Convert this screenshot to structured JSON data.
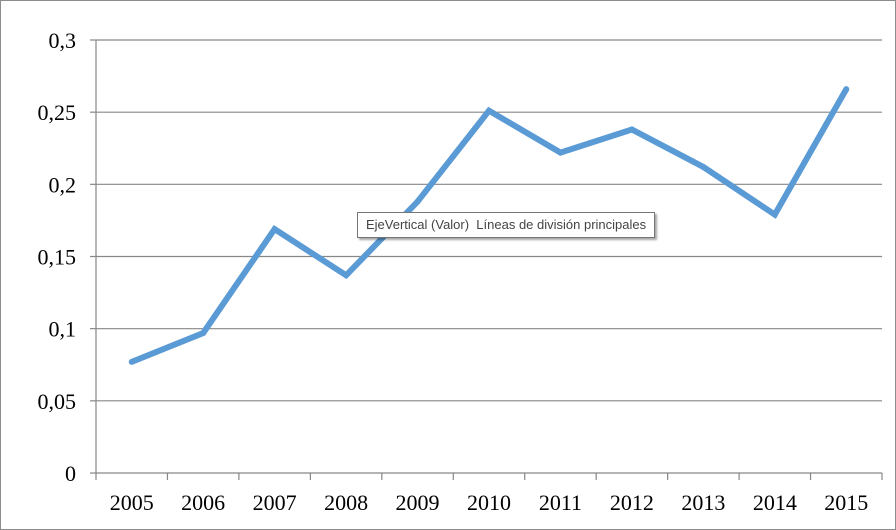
{
  "chart_data": {
    "type": "line",
    "title": "",
    "xlabel": "",
    "ylabel": "",
    "categories": [
      "2005",
      "2006",
      "2007",
      "2008",
      "2009",
      "2010",
      "2011",
      "2012",
      "2013",
      "2014",
      "2015"
    ],
    "series": [
      {
        "values": [
          0.077,
          0.097,
          0.169,
          0.137,
          0.188,
          0.251,
          0.222,
          0.238,
          0.212,
          0.179,
          0.266
        ]
      }
    ],
    "ylim": [
      0,
      0.3
    ],
    "yticks": [
      0,
      0.05,
      0.1,
      0.15,
      0.2,
      0.25,
      0.3
    ],
    "ytick_labels": [
      "0",
      "0,05",
      "0,1",
      "0,15",
      "0,2",
      "0,25",
      "0,3"
    ],
    "grid": "horizontal-major",
    "legend": "none",
    "colors": {
      "line": "#5b9bd5",
      "grid": "#878787",
      "axis": "#878787"
    }
  },
  "tooltip": {
    "text": "EjeVertical (Valor)  Líneas de división principales"
  }
}
